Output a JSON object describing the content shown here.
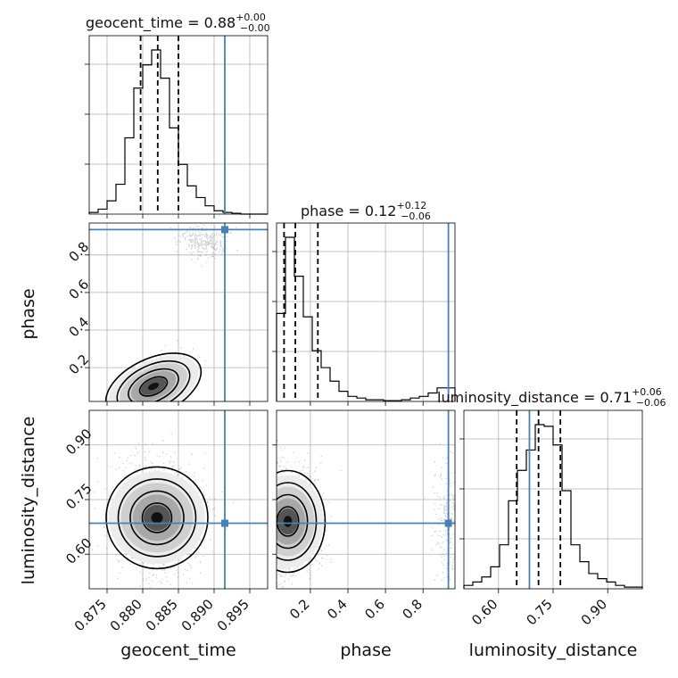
{
  "chart_data": {
    "type": "corner",
    "parameters": [
      "geocent_time",
      "phase",
      "luminosity_distance"
    ],
    "axis_labels": [
      "geocent_time",
      "phase",
      "luminosity_distance"
    ],
    "truths": [
      0.8915,
      0.935,
      0.685
    ],
    "titles": [
      {
        "param": "geocent_time",
        "prefix": "geocent_time = ",
        "median": "0.88",
        "plus": "+0.00",
        "minus": "−0.00"
      },
      {
        "param": "phase",
        "prefix": "phase = ",
        "median": "0.12",
        "plus": "+0.12",
        "minus": "−0.06"
      },
      {
        "param": "luminosity_distance",
        "prefix": "luminosity_distance = ",
        "median": "0.71",
        "plus": "+0.06",
        "minus": "−0.06"
      }
    ],
    "ranges": {
      "geocent_time": [
        0.8725,
        0.8975
      ],
      "phase": [
        0.02,
        0.97
      ],
      "luminosity_distance": [
        0.505,
        0.995
      ]
    },
    "ticks": {
      "geocent_time": {
        "values": [
          0.875,
          0.88,
          0.885,
          0.89,
          0.895
        ],
        "labels": [
          "0.875",
          "0.880",
          "0.885",
          "0.890",
          "0.895"
        ]
      },
      "phase": {
        "values": [
          0.2,
          0.4,
          0.6,
          0.8
        ],
        "labels": [
          "0.2",
          "0.4",
          "0.6",
          "0.8"
        ]
      },
      "luminosity_distance": {
        "values": [
          0.6,
          0.75,
          0.9
        ],
        "labels": [
          "0.60",
          "0.75",
          "0.90"
        ]
      }
    },
    "marginals": {
      "geocent_time": {
        "bin_edges": [
          0.8725,
          0.87375,
          0.875,
          0.87625,
          0.8775,
          0.87875,
          0.88,
          0.88125,
          0.8825,
          0.88375,
          0.885,
          0.88625,
          0.8875,
          0.88875,
          0.89,
          0.89125,
          0.8925,
          0.89375,
          0.895,
          0.89625,
          0.8975
        ],
        "counts": [
          0.01,
          0.03,
          0.08,
          0.18,
          0.46,
          0.76,
          0.9,
          0.99,
          0.82,
          0.52,
          0.3,
          0.17,
          0.1,
          0.05,
          0.02,
          0.01,
          0.005,
          0,
          0,
          0
        ],
        "quantiles": [
          0.8797,
          0.8821,
          0.885
        ]
      },
      "phase": {
        "bin_edges": [
          0.02,
          0.0675,
          0.115,
          0.1625,
          0.21,
          0.2575,
          0.305,
          0.3525,
          0.4,
          0.4475,
          0.495,
          0.5425,
          0.59,
          0.6375,
          0.685,
          0.7325,
          0.78,
          0.8275,
          0.875,
          0.9225,
          0.97
        ],
        "counts": [
          0.52,
          0.97,
          0.74,
          0.5,
          0.3,
          0.2,
          0.12,
          0.06,
          0.03,
          0.02,
          0.01,
          0.01,
          0.005,
          0.005,
          0.01,
          0.02,
          0.03,
          0.05,
          0.08,
          0.08
        ],
        "quantiles": [
          0.06,
          0.12,
          0.24
        ]
      },
      "luminosity_distance": {
        "bin_edges": [
          0.505,
          0.5295,
          0.554,
          0.5785,
          0.603,
          0.6275,
          0.652,
          0.6765,
          0.701,
          0.7255,
          0.75,
          0.7745,
          0.799,
          0.8235,
          0.848,
          0.8725,
          0.897,
          0.9215,
          0.946,
          0.9705,
          0.995
        ],
        "counts": [
          0.02,
          0.04,
          0.07,
          0.13,
          0.26,
          0.52,
          0.7,
          0.82,
          0.97,
          0.96,
          0.85,
          0.58,
          0.26,
          0.16,
          0.09,
          0.06,
          0.04,
          0.02,
          0.01,
          0.01
        ],
        "quantiles": [
          0.65,
          0.71,
          0.77
        ]
      }
    },
    "posterior_peaks": {
      "geocent_time_phase": {
        "geocent_time": 0.8815,
        "phase": 0.1
      },
      "geocent_time_luminosity_distance": {
        "geocent_time": 0.882,
        "luminosity_distance": 0.7
      },
      "phase_luminosity_distance": {
        "phase": 0.08,
        "luminosity_distance": 0.69
      }
    },
    "grid": true
  }
}
